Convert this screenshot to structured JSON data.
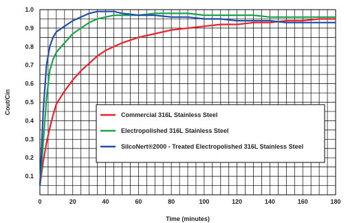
{
  "chart_data": {
    "type": "line",
    "title": "",
    "xlabel": "Time (minutes)",
    "ylabel": "Cout/Cin",
    "xlim": [
      0,
      180
    ],
    "ylim": [
      0,
      1.0
    ],
    "x_ticks": [
      "0",
      "20",
      "40",
      "60",
      "80",
      "100",
      "120",
      "140",
      "160",
      "180"
    ],
    "y_ticks": [
      "0.1",
      "0.2",
      "0.3",
      "0.4",
      "0.5",
      "0.6",
      "0.7",
      "0.8",
      "0.9",
      "1.0"
    ],
    "grid": true,
    "legend_position": "bottom-right",
    "series": [
      {
        "name": "Commercial 316L Stainless Steel",
        "color": "#e8212a",
        "x": [
          0,
          2,
          4,
          6,
          8,
          10,
          15,
          20,
          25,
          30,
          35,
          40,
          45,
          50,
          60,
          70,
          80,
          90,
          100,
          110,
          120,
          130,
          140,
          150,
          160,
          170,
          180
        ],
        "y": [
          0.05,
          0.18,
          0.28,
          0.36,
          0.43,
          0.49,
          0.56,
          0.62,
          0.67,
          0.71,
          0.75,
          0.78,
          0.8,
          0.82,
          0.85,
          0.87,
          0.89,
          0.9,
          0.91,
          0.92,
          0.92,
          0.93,
          0.93,
          0.94,
          0.94,
          0.95,
          0.95
        ]
      },
      {
        "name": "Electropolished 316L Stainless Steel",
        "color": "#1aa14a",
        "x": [
          0,
          2,
          4,
          6,
          8,
          10,
          15,
          20,
          25,
          30,
          35,
          40,
          45,
          50,
          60,
          70,
          80,
          90,
          100,
          110,
          120,
          130,
          140,
          150,
          160,
          170,
          180
        ],
        "y": [
          0.05,
          0.28,
          0.52,
          0.67,
          0.73,
          0.77,
          0.82,
          0.87,
          0.9,
          0.93,
          0.95,
          0.96,
          0.97,
          0.97,
          0.97,
          0.98,
          0.98,
          0.98,
          0.97,
          0.97,
          0.97,
          0.97,
          0.96,
          0.96,
          0.96,
          0.96,
          0.96
        ]
      },
      {
        "name": "SilcoNert®2000 - Treated Electropolished 316L Stainless Steel",
        "color": "#1f4ea8",
        "x": [
          0,
          2,
          4,
          6,
          8,
          10,
          15,
          20,
          25,
          30,
          35,
          40,
          45,
          50,
          60,
          70,
          80,
          90,
          100,
          110,
          120,
          130,
          140,
          150,
          160,
          170,
          180
        ],
        "y": [
          0.05,
          0.45,
          0.7,
          0.8,
          0.85,
          0.88,
          0.91,
          0.94,
          0.96,
          0.98,
          0.99,
          0.99,
          0.99,
          0.98,
          0.97,
          0.97,
          0.96,
          0.96,
          0.95,
          0.95,
          0.94,
          0.94,
          0.94,
          0.93,
          0.93,
          0.93,
          0.93
        ]
      }
    ]
  }
}
